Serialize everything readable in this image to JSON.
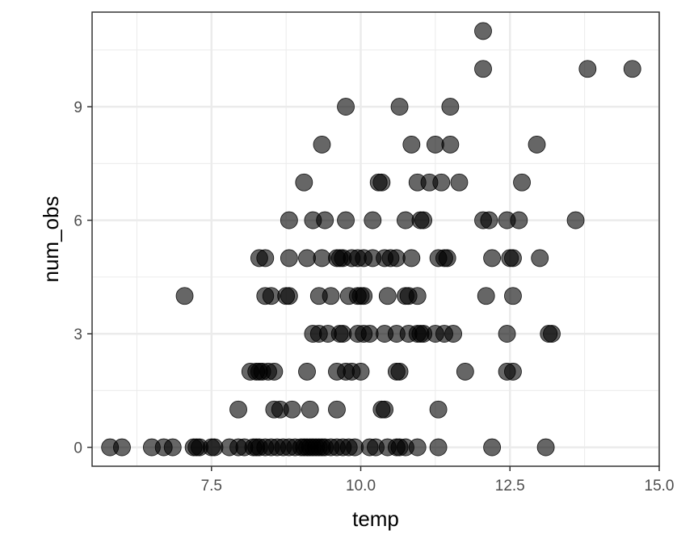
{
  "chart_data": {
    "type": "scatter",
    "xlabel": "temp",
    "ylabel": "num_obs",
    "xlim": [
      5.5,
      15.0
    ],
    "ylim": [
      -0.5,
      11.5
    ],
    "x_ticks": [
      7.5,
      10.0,
      12.5,
      15.0
    ],
    "x_tick_labels": [
      "7.5",
      "10.0",
      "12.5",
      "15.0"
    ],
    "y_ticks": [
      0,
      3,
      6,
      9
    ],
    "y_tick_labels": [
      "0",
      "3",
      "6",
      "9"
    ],
    "x_minor_ticks": [
      6.25,
      8.75,
      11.25,
      13.75
    ],
    "y_minor_ticks": [
      1.5,
      4.5,
      7.5,
      10.5
    ],
    "grid": true,
    "point_color": "#000000",
    "point_opacity": 0.6,
    "points": [
      {
        "x": 5.8,
        "y": 0
      },
      {
        "x": 6.0,
        "y": 0
      },
      {
        "x": 6.5,
        "y": 0
      },
      {
        "x": 6.7,
        "y": 0
      },
      {
        "x": 6.85,
        "y": 0
      },
      {
        "x": 7.2,
        "y": 0
      },
      {
        "x": 7.25,
        "y": 0
      },
      {
        "x": 7.3,
        "y": 0
      },
      {
        "x": 7.5,
        "y": 0
      },
      {
        "x": 7.55,
        "y": 0
      },
      {
        "x": 7.8,
        "y": 0
      },
      {
        "x": 7.95,
        "y": 0
      },
      {
        "x": 8.05,
        "y": 0
      },
      {
        "x": 8.2,
        "y": 0
      },
      {
        "x": 8.25,
        "y": 0
      },
      {
        "x": 8.3,
        "y": 0
      },
      {
        "x": 8.4,
        "y": 0
      },
      {
        "x": 8.5,
        "y": 0
      },
      {
        "x": 8.6,
        "y": 0
      },
      {
        "x": 8.7,
        "y": 0
      },
      {
        "x": 8.8,
        "y": 0
      },
      {
        "x": 8.9,
        "y": 0
      },
      {
        "x": 9.0,
        "y": 0
      },
      {
        "x": 9.05,
        "y": 0
      },
      {
        "x": 9.1,
        "y": 0
      },
      {
        "x": 9.15,
        "y": 0
      },
      {
        "x": 9.2,
        "y": 0
      },
      {
        "x": 9.25,
        "y": 0
      },
      {
        "x": 9.3,
        "y": 0
      },
      {
        "x": 9.35,
        "y": 0
      },
      {
        "x": 9.4,
        "y": 0
      },
      {
        "x": 9.5,
        "y": 0
      },
      {
        "x": 9.6,
        "y": 0
      },
      {
        "x": 9.7,
        "y": 0
      },
      {
        "x": 9.8,
        "y": 0
      },
      {
        "x": 9.9,
        "y": 0
      },
      {
        "x": 10.15,
        "y": 0
      },
      {
        "x": 10.25,
        "y": 0
      },
      {
        "x": 10.45,
        "y": 0
      },
      {
        "x": 10.6,
        "y": 0
      },
      {
        "x": 10.65,
        "y": 0
      },
      {
        "x": 10.75,
        "y": 0
      },
      {
        "x": 10.95,
        "y": 0
      },
      {
        "x": 11.3,
        "y": 0
      },
      {
        "x": 12.2,
        "y": 0
      },
      {
        "x": 13.1,
        "y": 0
      },
      {
        "x": 7.95,
        "y": 1
      },
      {
        "x": 8.55,
        "y": 1
      },
      {
        "x": 8.65,
        "y": 1
      },
      {
        "x": 8.85,
        "y": 1
      },
      {
        "x": 9.15,
        "y": 1
      },
      {
        "x": 9.6,
        "y": 1
      },
      {
        "x": 10.35,
        "y": 1
      },
      {
        "x": 10.4,
        "y": 1
      },
      {
        "x": 11.3,
        "y": 1
      },
      {
        "x": 8.15,
        "y": 2
      },
      {
        "x": 8.25,
        "y": 2
      },
      {
        "x": 8.3,
        "y": 2
      },
      {
        "x": 8.35,
        "y": 2
      },
      {
        "x": 8.45,
        "y": 2
      },
      {
        "x": 8.55,
        "y": 2
      },
      {
        "x": 9.1,
        "y": 2
      },
      {
        "x": 9.6,
        "y": 2
      },
      {
        "x": 9.75,
        "y": 2
      },
      {
        "x": 9.85,
        "y": 2
      },
      {
        "x": 10.0,
        "y": 2
      },
      {
        "x": 10.6,
        "y": 2
      },
      {
        "x": 10.65,
        "y": 2
      },
      {
        "x": 11.75,
        "y": 2
      },
      {
        "x": 12.45,
        "y": 2
      },
      {
        "x": 12.55,
        "y": 2
      },
      {
        "x": 9.2,
        "y": 3
      },
      {
        "x": 9.3,
        "y": 3
      },
      {
        "x": 9.45,
        "y": 3
      },
      {
        "x": 9.65,
        "y": 3
      },
      {
        "x": 9.7,
        "y": 3
      },
      {
        "x": 9.95,
        "y": 3
      },
      {
        "x": 10.05,
        "y": 3
      },
      {
        "x": 10.15,
        "y": 3
      },
      {
        "x": 10.4,
        "y": 3
      },
      {
        "x": 10.6,
        "y": 3
      },
      {
        "x": 10.8,
        "y": 3
      },
      {
        "x": 10.95,
        "y": 3
      },
      {
        "x": 11.0,
        "y": 3
      },
      {
        "x": 11.05,
        "y": 3
      },
      {
        "x": 11.25,
        "y": 3
      },
      {
        "x": 11.4,
        "y": 3
      },
      {
        "x": 11.55,
        "y": 3
      },
      {
        "x": 12.45,
        "y": 3
      },
      {
        "x": 13.15,
        "y": 3
      },
      {
        "x": 13.2,
        "y": 3
      },
      {
        "x": 7.05,
        "y": 4
      },
      {
        "x": 8.4,
        "y": 4
      },
      {
        "x": 8.5,
        "y": 4
      },
      {
        "x": 8.75,
        "y": 4
      },
      {
        "x": 8.8,
        "y": 4
      },
      {
        "x": 9.3,
        "y": 4
      },
      {
        "x": 9.5,
        "y": 4
      },
      {
        "x": 9.8,
        "y": 4
      },
      {
        "x": 9.95,
        "y": 4
      },
      {
        "x": 10.0,
        "y": 4
      },
      {
        "x": 10.05,
        "y": 4
      },
      {
        "x": 10.45,
        "y": 4
      },
      {
        "x": 10.75,
        "y": 4
      },
      {
        "x": 10.8,
        "y": 4
      },
      {
        "x": 10.95,
        "y": 4
      },
      {
        "x": 12.1,
        "y": 4
      },
      {
        "x": 12.55,
        "y": 4
      },
      {
        "x": 8.3,
        "y": 5
      },
      {
        "x": 8.4,
        "y": 5
      },
      {
        "x": 8.8,
        "y": 5
      },
      {
        "x": 9.1,
        "y": 5
      },
      {
        "x": 9.35,
        "y": 5
      },
      {
        "x": 9.6,
        "y": 5
      },
      {
        "x": 9.65,
        "y": 5
      },
      {
        "x": 9.7,
        "y": 5
      },
      {
        "x": 9.85,
        "y": 5
      },
      {
        "x": 9.95,
        "y": 5
      },
      {
        "x": 10.05,
        "y": 5
      },
      {
        "x": 10.2,
        "y": 5
      },
      {
        "x": 10.4,
        "y": 5
      },
      {
        "x": 10.5,
        "y": 5
      },
      {
        "x": 10.6,
        "y": 5
      },
      {
        "x": 10.85,
        "y": 5
      },
      {
        "x": 11.3,
        "y": 5
      },
      {
        "x": 11.4,
        "y": 5
      },
      {
        "x": 11.45,
        "y": 5
      },
      {
        "x": 12.2,
        "y": 5
      },
      {
        "x": 12.5,
        "y": 5
      },
      {
        "x": 12.55,
        "y": 5
      },
      {
        "x": 13.0,
        "y": 5
      },
      {
        "x": 8.8,
        "y": 6
      },
      {
        "x": 9.2,
        "y": 6
      },
      {
        "x": 9.4,
        "y": 6
      },
      {
        "x": 9.75,
        "y": 6
      },
      {
        "x": 10.2,
        "y": 6
      },
      {
        "x": 10.75,
        "y": 6
      },
      {
        "x": 11.0,
        "y": 6
      },
      {
        "x": 11.05,
        "y": 6
      },
      {
        "x": 12.05,
        "y": 6
      },
      {
        "x": 12.15,
        "y": 6
      },
      {
        "x": 12.45,
        "y": 6
      },
      {
        "x": 12.65,
        "y": 6
      },
      {
        "x": 13.6,
        "y": 6
      },
      {
        "x": 9.05,
        "y": 7
      },
      {
        "x": 10.3,
        "y": 7
      },
      {
        "x": 10.35,
        "y": 7
      },
      {
        "x": 10.95,
        "y": 7
      },
      {
        "x": 11.15,
        "y": 7
      },
      {
        "x": 11.35,
        "y": 7
      },
      {
        "x": 11.65,
        "y": 7
      },
      {
        "x": 12.7,
        "y": 7
      },
      {
        "x": 9.35,
        "y": 8
      },
      {
        "x": 10.85,
        "y": 8
      },
      {
        "x": 11.25,
        "y": 8
      },
      {
        "x": 11.5,
        "y": 8
      },
      {
        "x": 12.95,
        "y": 8
      },
      {
        "x": 9.75,
        "y": 9
      },
      {
        "x": 10.65,
        "y": 9
      },
      {
        "x": 11.5,
        "y": 9
      },
      {
        "x": 12.05,
        "y": 10
      },
      {
        "x": 13.8,
        "y": 10
      },
      {
        "x": 14.55,
        "y": 10
      },
      {
        "x": 12.05,
        "y": 11
      }
    ]
  }
}
